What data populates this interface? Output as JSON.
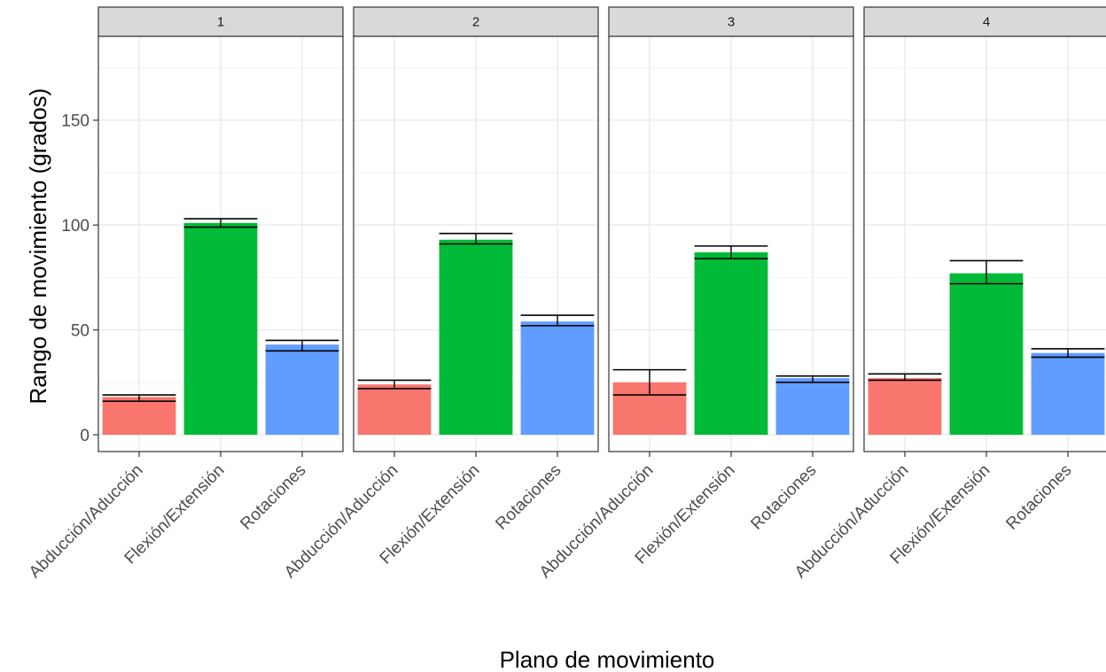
{
  "chart_data": {
    "type": "bar",
    "xlabel": "Plano de movimiento",
    "ylabel": "Rango de movimiento (grados)",
    "ylim": [
      -8,
      190
    ],
    "yticks": [
      0,
      50,
      100,
      150
    ],
    "grid": true,
    "legend": "none",
    "categories": [
      "Abducción/Aducción",
      "Flexión/Extensión",
      "Rotaciones"
    ],
    "colors": [
      "#F8766D",
      "#00BA38",
      "#619CFF"
    ],
    "panels": [
      {
        "label": "1",
        "values": [
          18,
          101,
          43
        ],
        "err_low": [
          16,
          99,
          40
        ],
        "err_high": [
          19,
          103,
          45
        ]
      },
      {
        "label": "2",
        "values": [
          24,
          93,
          54
        ],
        "err_low": [
          22,
          91,
          52
        ],
        "err_high": [
          26,
          96,
          57
        ]
      },
      {
        "label": "3",
        "values": [
          25,
          87,
          27
        ],
        "err_low": [
          19,
          84,
          25
        ],
        "err_high": [
          31,
          90,
          28
        ]
      },
      {
        "label": "4",
        "values": [
          27,
          77,
          39
        ],
        "err_low": [
          26,
          72,
          37
        ],
        "err_high": [
          29,
          83,
          41
        ]
      }
    ]
  }
}
